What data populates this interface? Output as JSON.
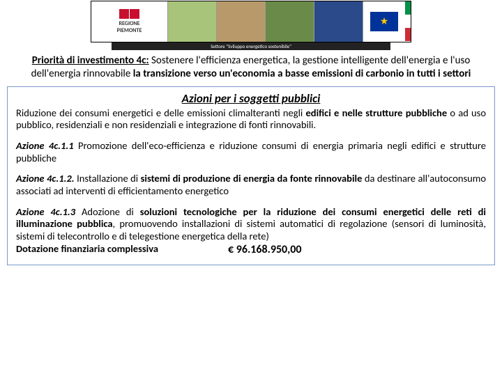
{
  "banner": {
    "region_line1": "REGIONE",
    "region_line2": "PIEMONTE",
    "flag_colors": [
      "#c8102e",
      "#c8102e"
    ],
    "img_colors": [
      "#a8c47a",
      "#b89a6a",
      "#6a8a4a",
      "#2a4a8a"
    ],
    "eu_stars": "★",
    "eu_bg": "#003399",
    "eu_star_color": "#ffcc00",
    "it_colors": [
      "#009246",
      "#ffffff",
      "#ce2b37"
    ],
    "subtitle": "Settore \"Sviluppo energetico sostenibile\""
  },
  "priority": {
    "lead": "Priorità di investimento 4c:",
    "rest_a": " Sostenere l'efficienza energetica, la gestione intelligente dell'energia e l'uso dell'energia rinnovabile ",
    "bold_tail": "la transizione verso un'economia a basse emissioni di carbonio in tutti i settori"
  },
  "section_title": "Azioni per i soggetti pubblici",
  "intro": {
    "pre": "Riduzione dei consumi energetici e delle emissioni climalteranti negli ",
    "b1": "edifici e nelle strutture pubbliche",
    "post": " o ad uso pubblico, residenziali e non residenziali e integrazione di fonti rinnovabili."
  },
  "a1": {
    "label": "Azione 4c.1.1",
    "text": " Promozione dell'eco-efficienza e riduzione consumi di energia primaria negli edifici  e strutture pubbliche"
  },
  "a2": {
    "label": "Azione 4c.1.2.",
    "text_a": " Installazione di ",
    "b": "sistemi di produzione di energia da fonte rinnovabile",
    "text_b": " da destinare all'autoconsumo associati ad interventi di efficientamento energetico"
  },
  "a3": {
    "label": "Azione 4c.1.3",
    "text_a": "  Adozione di ",
    "b1": "soluzioni tecnologiche per la riduzione dei consumi energetici delle reti di illuminazione pubblica",
    "text_b": ", promuovendo installazioni di sistemi automatici di regolazione (sensori di luminosità, sistemi di telecontrollo e di telegestione energetica della rete)"
  },
  "funding": {
    "label": "Dotazione finanziaria complessiva",
    "value": "€ 96.168.950,00"
  },
  "styles": {
    "box_border": "#7a99c8",
    "text_color": "#000000",
    "bg": "#ffffff"
  }
}
